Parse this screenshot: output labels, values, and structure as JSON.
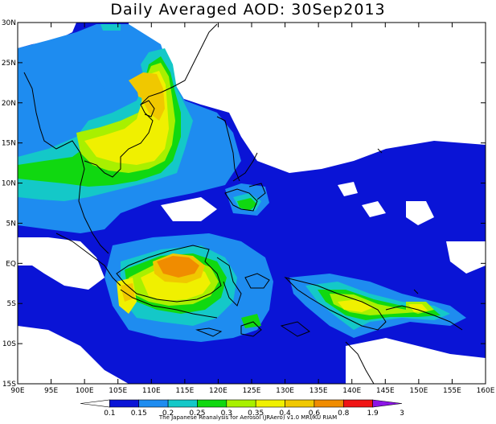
{
  "title": "Daily Averaged AOD: 30Sep2013",
  "footer": "The Japanese Reanalysis for Aerosol (JRAero) v1.0  MRI/KU RIAM",
  "axes": {
    "lon_labels": [
      "90E",
      "95E",
      "100E",
      "105E",
      "110E",
      "115E",
      "120E",
      "125E",
      "130E",
      "135E",
      "140E",
      "145E",
      "150E",
      "155E",
      "160E"
    ],
    "lat_labels": [
      "30N",
      "25N",
      "20N",
      "15N",
      "10N",
      "5N",
      "EQ",
      "5S",
      "10S",
      "15S"
    ]
  },
  "colorbar": {
    "labels": [
      "0.1",
      "0.15",
      "0.2",
      "0.25",
      "0.3",
      "0.35",
      "0.4",
      "0.6",
      "0.8",
      "1.9",
      "3"
    ],
    "colors": [
      "#ffffff",
      "#0a14d6",
      "#1e8cf0",
      "#14c8c8",
      "#10d810",
      "#a8f000",
      "#f0f000",
      "#f0c800",
      "#f08c00",
      "#f01414",
      "#8c14e6"
    ]
  }
}
